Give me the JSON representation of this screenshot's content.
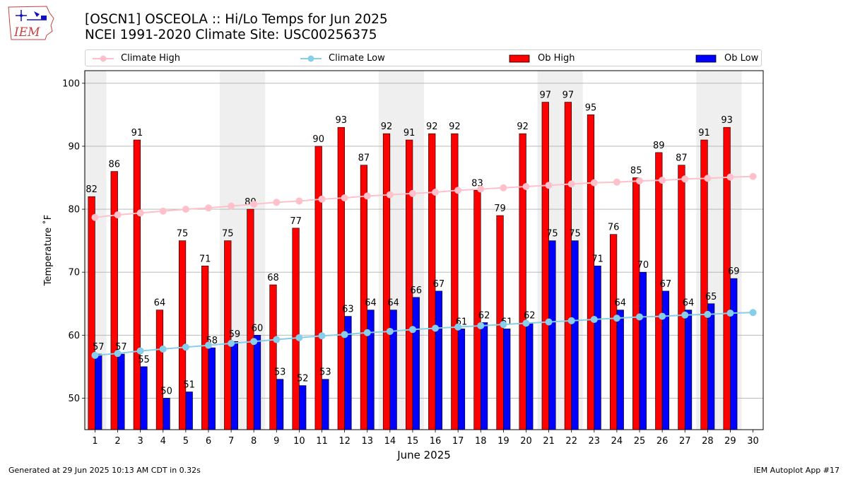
{
  "header": {
    "title_line1": "[OSCN1] OSCEOLA :: Hi/Lo Temps for Jun 2025",
    "title_line2": "NCEI 1991-2020 Climate Site: USC00256375",
    "logo_text": "IEM"
  },
  "legend": {
    "climate_high": "Climate High",
    "climate_low": "Climate Low",
    "ob_high": "Ob High",
    "ob_low": "Ob Low"
  },
  "footer": {
    "left": "Generated at 29 Jun 2025 10:13 AM CDT in 0.32s",
    "right": "IEM Autoplot App #17"
  },
  "chart_data": {
    "type": "bar",
    "xlabel": "June 2025",
    "ylabel": "Temperature ˚F",
    "ylim": [
      45,
      102
    ],
    "yticks": [
      50,
      60,
      70,
      80,
      90,
      100
    ],
    "grid": true,
    "legend_position": "top",
    "weekend_days": [
      1,
      7,
      8,
      14,
      15,
      21,
      22,
      28,
      29
    ],
    "x": [
      1,
      2,
      3,
      4,
      5,
      6,
      7,
      8,
      9,
      10,
      11,
      12,
      13,
      14,
      15,
      16,
      17,
      18,
      19,
      20,
      21,
      22,
      23,
      24,
      25,
      26,
      27,
      28,
      29,
      30
    ],
    "series": [
      {
        "name": "Ob High",
        "kind": "bar",
        "color": "#ff0000",
        "values": [
          82,
          86,
          91,
          64,
          75,
          71,
          75,
          80,
          68,
          77,
          90,
          93,
          87,
          92,
          91,
          92,
          92,
          83,
          79,
          92,
          97,
          97,
          95,
          76,
          85,
          89,
          87,
          91,
          93,
          null
        ]
      },
      {
        "name": "Ob Low",
        "kind": "bar",
        "color": "#0000ff",
        "values": [
          57,
          57,
          55,
          50,
          51,
          58,
          59,
          60,
          53,
          52,
          53,
          63,
          64,
          64,
          66,
          67,
          61,
          62,
          61,
          62,
          75,
          75,
          71,
          64,
          70,
          67,
          64,
          65,
          69,
          null
        ]
      },
      {
        "name": "Climate High",
        "kind": "line",
        "color": "#ffc0cb",
        "values": [
          78.7,
          79.1,
          79.4,
          79.7,
          80.0,
          80.2,
          80.5,
          80.8,
          81.1,
          81.3,
          81.6,
          81.8,
          82.1,
          82.3,
          82.5,
          82.7,
          83.0,
          83.2,
          83.4,
          83.6,
          83.8,
          84.0,
          84.2,
          84.3,
          84.5,
          84.6,
          84.8,
          84.9,
          85.1,
          85.2
        ]
      },
      {
        "name": "Climate Low",
        "kind": "line",
        "color": "#87ceeb",
        "values": [
          56.8,
          57.1,
          57.5,
          57.8,
          58.1,
          58.4,
          58.7,
          59.0,
          59.3,
          59.6,
          59.9,
          60.1,
          60.4,
          60.6,
          60.9,
          61.1,
          61.3,
          61.5,
          61.7,
          61.9,
          62.1,
          62.3,
          62.5,
          62.7,
          62.9,
          63.0,
          63.2,
          63.3,
          63.5,
          63.6
        ]
      }
    ]
  }
}
